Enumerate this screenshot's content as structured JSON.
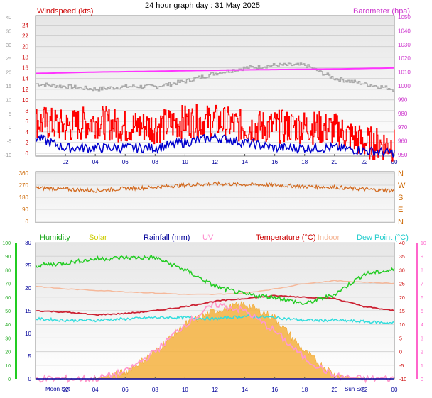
{
  "title": "24 hour graph day : 31 May 2025",
  "colors": {
    "windspeed": "#ff0000",
    "gust_avg": "#0000cc",
    "barometer": "#ff33ff",
    "grey_series": "#aaaaaa",
    "wind_dir": "#d2691e",
    "humidity": "#22cc22",
    "solar": "#f5b240",
    "rainfall": "#000099",
    "uv": "#ff99cc",
    "temperature": "#cc2233",
    "indoor": "#f5b89a",
    "dewpoint": "#33dddd"
  },
  "x_ticks": [
    "02",
    "04",
    "06",
    "08",
    "10",
    "12",
    "14",
    "16",
    "18",
    "20",
    "22",
    "00"
  ],
  "panel1": {
    "left_axis_label": "Windspeed (kts)",
    "right_axis_label": "Barometer (hpa)",
    "left_ticks": [
      "24",
      "22",
      "20",
      "18",
      "16",
      "14",
      "12",
      "10",
      "8",
      "6",
      "4",
      "2",
      "0"
    ],
    "far_left_ticks": [
      "40",
      "35",
      "30",
      "25",
      "20",
      "15",
      "10",
      "5",
      "0",
      "-5",
      "-10"
    ],
    "right_ticks": [
      "1050",
      "1040",
      "1030",
      "1020",
      "1010",
      "1000",
      "990",
      "980",
      "970",
      "960",
      "950"
    ]
  },
  "panel2": {
    "left_ticks": [
      "360",
      "270",
      "180",
      "90",
      "0"
    ],
    "compass": [
      "N",
      "W",
      "S",
      "E",
      "N"
    ]
  },
  "panel3": {
    "labels": {
      "humidity": "Humidity",
      "solar": "Solar",
      "rainfall": "Rainfall (mm)",
      "uv": "UV",
      "temperature": "Temperature (°C)",
      "indoor": "Indoor",
      "dewpoint": "Dew Point (°C)"
    },
    "humidity_ticks": [
      "100",
      "90",
      "80",
      "70",
      "60",
      "50",
      "40",
      "30",
      "20",
      "10",
      "0"
    ],
    "rain_ticks": [
      "30",
      "25",
      "20",
      "15",
      "10",
      "5",
      "0"
    ],
    "temp_ticks": [
      "40",
      "35",
      "30",
      "25",
      "20",
      "15",
      "10",
      "5",
      "0",
      "-5",
      "-10"
    ],
    "uv_ticks": [
      "10",
      "9",
      "8",
      "7",
      "6",
      "5",
      "4",
      "3",
      "2",
      "1",
      "0"
    ],
    "moon_label": "Moon Set",
    "sun_label": "Sun Set"
  },
  "chart_data": [
    {
      "type": "line",
      "title": "24 hour graph day : 31 May 2025",
      "x_unit": "hour",
      "x": [
        0,
        2,
        4,
        6,
        8,
        10,
        12,
        14,
        16,
        18,
        20,
        22,
        24
      ],
      "ylabel": "Windspeed (kts)",
      "ylim": [
        0,
        25
      ],
      "y2label": "Barometer (hpa)",
      "y2lim": [
        950,
        1050
      ],
      "series": [
        {
          "name": "Windspeed (kts)",
          "axis": "left",
          "values": [
            6,
            5,
            6,
            5,
            5,
            6,
            6,
            5,
            5,
            5,
            4.5,
            2,
            1.5
          ]
        },
        {
          "axis": "left",
          "values": [
            3,
            1,
            1,
            1,
            1,
            2,
            3,
            2,
            1,
            1,
            1,
            0.5,
            0
          ]
        },
        {
          "name": "Barometer (hpa)",
          "axis": "right",
          "values": [
            1009,
            1009.5,
            1010,
            1010.3,
            1010.6,
            1011,
            1011.3,
            1011.6,
            1011.8,
            1012,
            1012.2,
            1012.6,
            1013
          ]
        },
        {
          "axis": "left",
          "values": [
            13,
            12.5,
            12,
            12.5,
            12.5,
            13.5,
            15,
            16,
            16.5,
            16.5,
            14,
            13,
            12
          ]
        }
      ]
    },
    {
      "type": "line",
      "x_unit": "hour",
      "x": [
        0,
        2,
        4,
        6,
        8,
        10,
        12,
        14,
        16,
        18,
        20,
        22,
        24
      ],
      "ylim": [
        0,
        360
      ],
      "yticks": [
        "N",
        "W",
        "S",
        "E",
        "N"
      ],
      "series": [
        {
          "values": [
            250,
            240,
            230,
            245,
            255,
            270,
            280,
            275,
            270,
            260,
            255,
            240,
            230
          ]
        }
      ]
    },
    {
      "type": "line",
      "x_unit": "hour",
      "x": [
        0,
        2,
        4,
        6,
        8,
        10,
        12,
        14,
        16,
        18,
        20,
        22,
        24
      ],
      "series": [
        {
          "name": "Humidity",
          "axis": "humidity_0_100",
          "values": [
            83,
            85,
            88,
            89,
            89,
            80,
            68,
            62,
            60,
            55,
            62,
            77,
            80
          ]
        },
        {
          "name": "Solar",
          "axis": "uv_0_10",
          "values": [
            0,
            0,
            0,
            0.5,
            2,
            4,
            5,
            5.5,
            4.5,
            2,
            0.3,
            0,
            0
          ]
        },
        {
          "name": "Rainfall (mm)",
          "axis": "rain_0_30",
          "values": [
            0,
            0,
            0,
            0,
            0,
            0,
            0,
            0,
            0,
            0,
            0,
            0,
            0
          ]
        },
        {
          "name": "UV",
          "axis": "uv_0_10",
          "values": [
            0,
            0,
            0,
            0.5,
            2,
            4,
            5.5,
            5,
            3.5,
            1.5,
            0.2,
            0,
            0
          ]
        },
        {
          "name": "Temperature (°C)",
          "axis": "temp_-10_40",
          "values": [
            15,
            14.5,
            13.5,
            14,
            15,
            16.5,
            18.5,
            19.5,
            20.5,
            20,
            19.5,
            16.5,
            15
          ]
        },
        {
          "name": "Indoor",
          "axis": "temp_-10_40",
          "values": [
            24,
            23,
            22.5,
            22,
            21.5,
            21,
            21,
            21.5,
            23,
            25,
            26,
            25.5,
            25
          ]
        },
        {
          "name": "Dew Point (°C)",
          "axis": "temp_-10_40",
          "values": [
            12,
            11.5,
            11.5,
            12,
            12.5,
            12.5,
            12,
            13,
            12.5,
            11.5,
            11.5,
            11,
            10.5
          ]
        }
      ]
    }
  ]
}
